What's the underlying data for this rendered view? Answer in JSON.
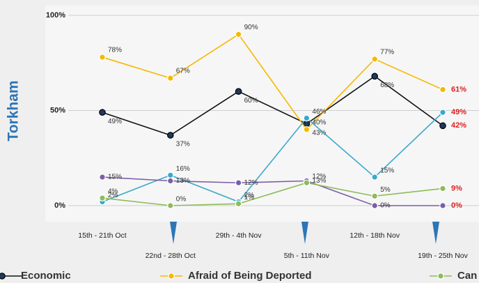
{
  "chart_data": {
    "type": "line",
    "y_label": "Torkham",
    "categories": [
      "15th - 21th Oct",
      "22nd - 28th Oct",
      "29th - 4th Nov",
      "5th  - 11th Nov",
      "12th - 18th Nov",
      "19th - 25th Nov"
    ],
    "series": [
      {
        "name": "Economic",
        "color": "#111111",
        "values": [
          49,
          37,
          60,
          43,
          68,
          42
        ],
        "value_labels": [
          "49%",
          "37%",
          "60%",
          "43%",
          "68%",
          "42%"
        ]
      },
      {
        "name": "Afraid of Being Deported",
        "color": "#f5b800",
        "values": [
          78,
          67,
          90,
          40,
          77,
          61
        ],
        "value_labels": [
          "78%",
          "67%",
          "90%",
          "40%",
          "77%",
          "61%"
        ]
      },
      {
        "color": "#3aa9c9",
        "values": [
          2,
          16,
          2,
          46,
          15,
          49
        ],
        "value_labels": [
          "2%",
          "16%",
          "2%",
          "46%",
          "15%",
          "49%"
        ]
      },
      {
        "color": "#7b5ea7",
        "values": [
          15,
          13,
          12,
          13,
          0,
          0
        ],
        "value_labels": [
          "15%",
          "13%",
          "12%",
          "13%",
          "0%",
          "0%"
        ]
      },
      {
        "name": "Can",
        "color": "#8dbb5a",
        "values": [
          4,
          0,
          1,
          12,
          5,
          9
        ],
        "value_labels": [
          "4%",
          "0%",
          "1%",
          "12%",
          "5%",
          "9%"
        ]
      }
    ],
    "ylim": [
      0,
      100
    ],
    "yticks": [
      {
        "value": 0,
        "label": "0%"
      },
      {
        "value": 50,
        "label": "50%"
      },
      {
        "value": 100,
        "label": "100%"
      }
    ],
    "grid": true
  }
}
